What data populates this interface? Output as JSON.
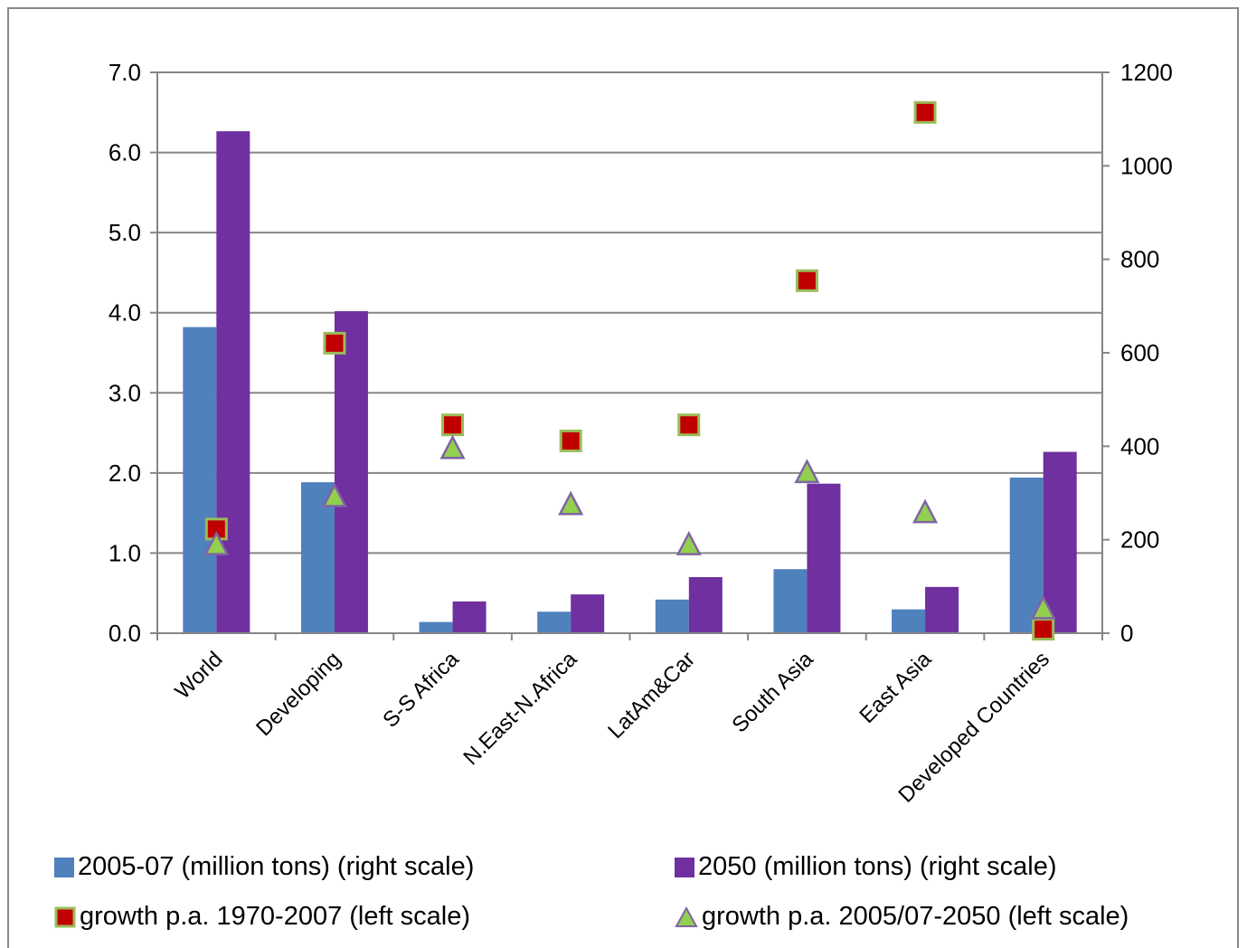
{
  "chart_data": {
    "type": "bar",
    "title": "",
    "categories": [
      "World",
      "Developing",
      "S-S Africa",
      "N.East-N.Africa",
      "LatAm&Car",
      "South Asia",
      "East Asia",
      "Developed Countries"
    ],
    "bar_series": [
      {
        "name": "2005-07 (million tons) (right scale)",
        "axis": "right",
        "color": "#4f81bd",
        "values": [
          655,
          323,
          24,
          46,
          72,
          137,
          51,
          333
        ]
      },
      {
        "name": "2050 (million tons)  (right scale)",
        "axis": "right",
        "color": "#7030a0",
        "values": [
          1074,
          689,
          68,
          83,
          120,
          320,
          99,
          388
        ]
      }
    ],
    "marker_series": [
      {
        "name": "growth p.a. 1970-2007 (left scale)",
        "axis": "left",
        "marker": "square",
        "fill": "#c00000",
        "stroke": "#9bbb59",
        "values": [
          1.3,
          3.62,
          2.6,
          2.4,
          2.6,
          4.4,
          6.5,
          0.05
        ]
      },
      {
        "name": "growth p.a. 2005/07-2050 (left scale)",
        "axis": "left",
        "marker": "triangle",
        "fill": "#92d050",
        "stroke": "#8064a2",
        "values": [
          1.1,
          1.7,
          2.3,
          1.6,
          1.1,
          2.0,
          1.5,
          0.3
        ]
      }
    ],
    "left_axis": {
      "ylim": [
        0,
        7
      ],
      "ticks": [
        "0.0",
        "1.0",
        "2.0",
        "3.0",
        "4.0",
        "5.0",
        "6.0",
        "7.0"
      ]
    },
    "right_axis": {
      "ylim": [
        0,
        1200
      ],
      "ticks": [
        "0",
        "200",
        "400",
        "600",
        "800",
        "1000",
        "1200"
      ]
    },
    "grid": true,
    "legend_position": "bottom"
  }
}
